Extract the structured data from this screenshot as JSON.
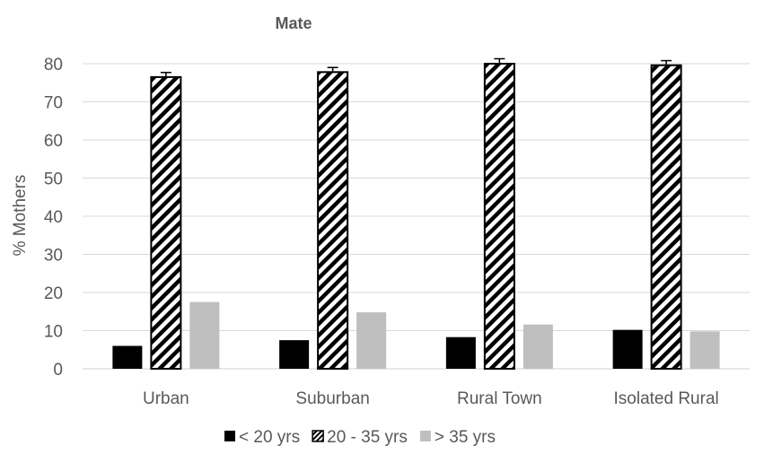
{
  "chart_data": {
    "type": "bar",
    "title": "Mate",
    "xlabel": "",
    "ylabel": "% Mothers",
    "ylim": [
      0,
      80
    ],
    "yticks": [
      0,
      10,
      20,
      30,
      40,
      50,
      60,
      70,
      80
    ],
    "grid": true,
    "legend_position": "bottom",
    "categories": [
      "Urban",
      "Suburban",
      "Rural Town",
      "Isolated Rural"
    ],
    "series": [
      {
        "name": "< 20 yrs",
        "style": "solid",
        "color": "#000000",
        "values": [
          6.0,
          7.5,
          8.3,
          10.2
        ]
      },
      {
        "name": "20 - 35 yrs",
        "style": "hatched",
        "color": "#000000",
        "values": [
          76.5,
          77.8,
          80.0,
          79.6
        ],
        "error": [
          1.2,
          1.2,
          1.3,
          1.2
        ]
      },
      {
        "name": "> 35 yrs",
        "style": "solid",
        "color": "#bfbfbf",
        "values": [
          17.5,
          14.8,
          11.6,
          9.8
        ]
      }
    ]
  }
}
